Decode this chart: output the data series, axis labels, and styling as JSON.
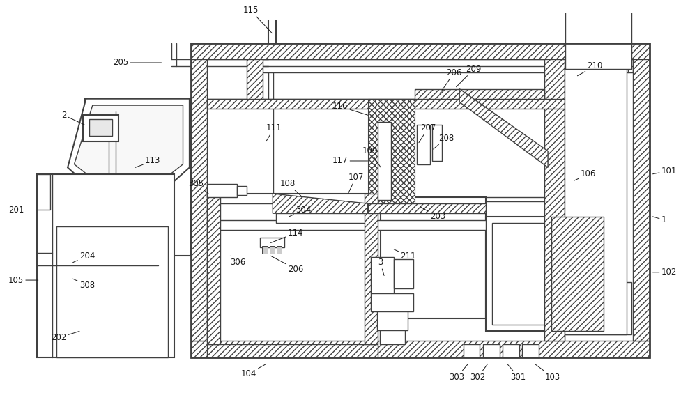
{
  "bg_color": "#ffffff",
  "lc": "#404040",
  "label_color": "#1a1a1a",
  "fs": 8.5,
  "fw": 10.0,
  "fh": 5.87
}
